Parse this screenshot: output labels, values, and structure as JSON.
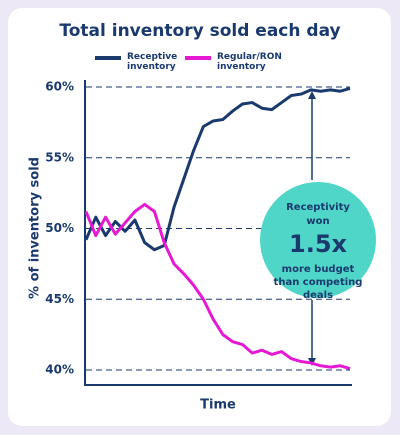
{
  "chart_data": {
    "type": "line",
    "title": "Total inventory sold each day",
    "xlabel": "Time",
    "ylabel": "% of inventory sold",
    "ylim": [
      40,
      60
    ],
    "yticks": [
      {
        "value": 40,
        "label": "40%"
      },
      {
        "value": 45,
        "label": "45%"
      },
      {
        "value": 50,
        "label": "50%"
      },
      {
        "value": 55,
        "label": "55%"
      },
      {
        "value": 60,
        "label": "60%"
      }
    ],
    "grid": true,
    "series": [
      {
        "name": "Receptive inventory",
        "color": "#1a3a6e",
        "values": [
          49.2,
          50.8,
          49.5,
          50.5,
          49.8,
          50.6,
          49,
          48.5,
          48.8,
          51.5,
          53.5,
          55.5,
          57.2,
          57.6,
          57.7,
          58.3,
          58.8,
          58.9,
          58.5,
          58.4,
          58.9,
          59.4,
          59.5,
          59.8,
          59.7,
          59.8,
          59.7,
          59.9
        ]
      },
      {
        "name": "Regular/RON inventory",
        "color": "#e619d2",
        "values": [
          51.2,
          49.5,
          50.8,
          49.6,
          50.4,
          51.2,
          51.7,
          51.2,
          49,
          47.5,
          46.8,
          46,
          45,
          43.6,
          42.5,
          42,
          41.8,
          41.2,
          41.4,
          41.1,
          41.3,
          40.8,
          40.6,
          40.5,
          40.3,
          40.2,
          40.3,
          40.1
        ]
      }
    ],
    "annotation": {
      "lines": [
        "Receptivity",
        "won",
        "1.5x",
        "more budget",
        "than competing",
        "deals"
      ]
    }
  }
}
